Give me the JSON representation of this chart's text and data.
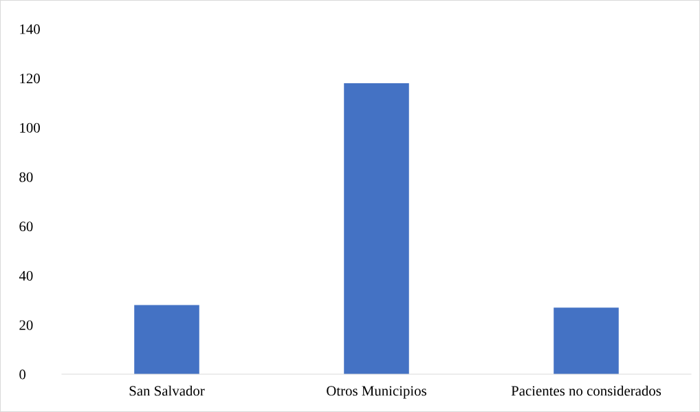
{
  "chart_data": {
    "type": "bar",
    "categories": [
      "San Salvador",
      "Otros Municipios",
      "Pacientes no considerados"
    ],
    "values": [
      28,
      118,
      27
    ],
    "color": "#4472c4",
    "ylim": [
      0,
      140
    ],
    "yticks": [
      0,
      20,
      40,
      60,
      80,
      100,
      120,
      140
    ],
    "grid": false
  }
}
